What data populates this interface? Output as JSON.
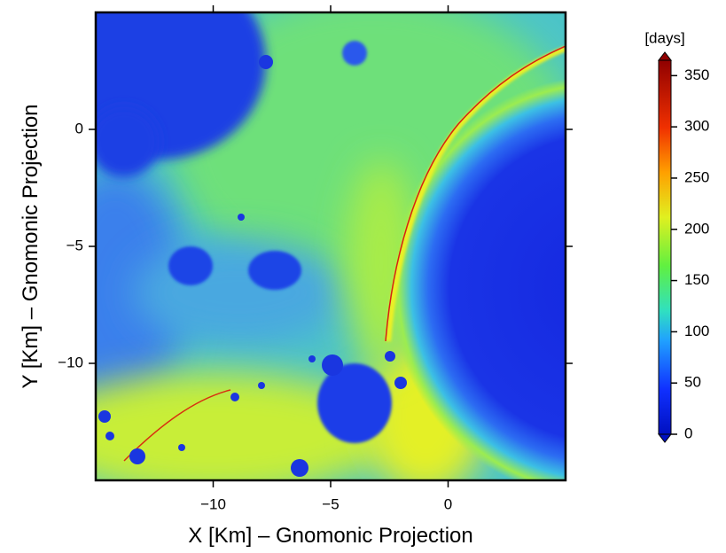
{
  "chart_data": {
    "type": "heatmap",
    "xlabel": "X [Km] – Gnomonic Projection",
    "ylabel": "Y [Km] – Gnomonic Projection",
    "xlim": [
      -15,
      5
    ],
    "ylim": [
      -15,
      5
    ],
    "xticks": [
      {
        "value": -10,
        "label": "−10"
      },
      {
        "value": -5,
        "label": "−5"
      },
      0
    ],
    "yticks": [
      0,
      {
        "value": -5,
        "label": "−5"
      },
      {
        "value": -10,
        "label": "−10"
      }
    ],
    "colorbar": {
      "label": "[days]",
      "lim": [
        0,
        365
      ],
      "ticks": [
        0,
        50,
        100,
        150,
        200,
        250,
        300,
        350
      ]
    }
  }
}
